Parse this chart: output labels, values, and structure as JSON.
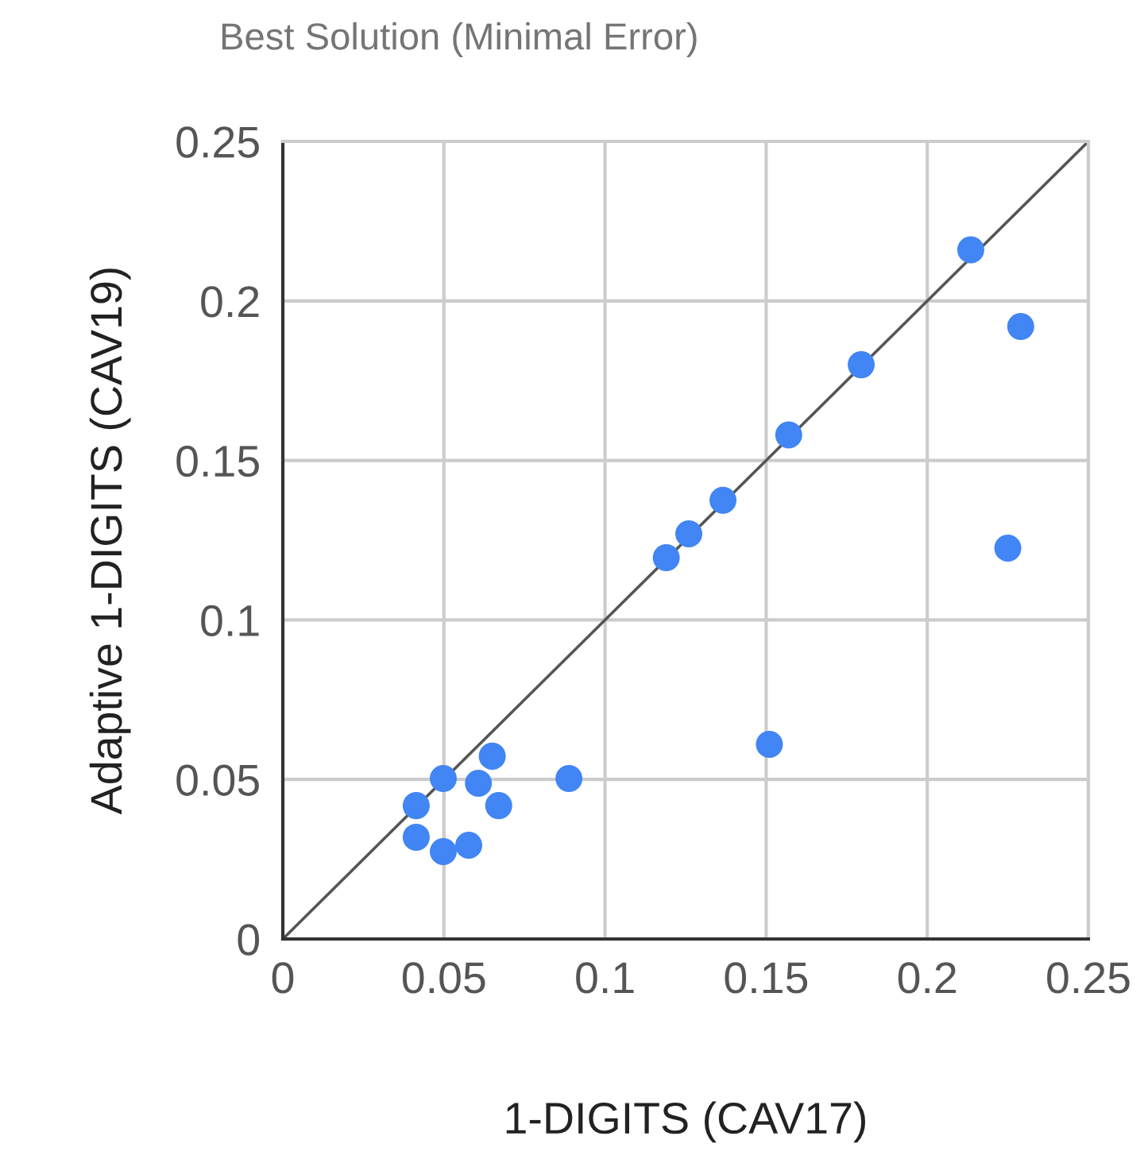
{
  "chart_data": {
    "type": "scatter",
    "title": "Best Solution (Minimal Error)",
    "xlabel": "1-DIGITS (CAV17)",
    "ylabel": "Adaptive 1-DIGITS (CAV19)",
    "xlim": [
      0,
      0.25
    ],
    "ylim": [
      0,
      0.25
    ],
    "xticks": [
      0,
      0.05,
      0.1,
      0.15,
      0.2,
      0.25
    ],
    "yticks": [
      0,
      0.05,
      0.1,
      0.15,
      0.2,
      0.25
    ],
    "grid": true,
    "legend": false,
    "series": [
      {
        "marker": "circle",
        "color": "#4285f4",
        "x": [
          0.2135,
          0.229,
          0.1795,
          0.157,
          0.1366,
          0.126,
          0.119,
          0.225,
          0.151,
          0.0888,
          0.065,
          0.0498,
          0.0607,
          0.067,
          0.0414,
          0.0414,
          0.0498,
          0.0577
        ],
        "values": [
          0.216,
          0.192,
          0.18,
          0.158,
          0.1375,
          0.127,
          0.1195,
          0.1225,
          0.061,
          0.0503,
          0.0573,
          0.0503,
          0.0488,
          0.0418,
          0.0418,
          0.0319,
          0.0274,
          0.0294
        ]
      },
      {
        "type": "line",
        "marker": "none",
        "color": "#555555",
        "x": [
          0,
          0.25
        ],
        "values": [
          0,
          0.25
        ],
        "line_style": "solid"
      }
    ]
  }
}
